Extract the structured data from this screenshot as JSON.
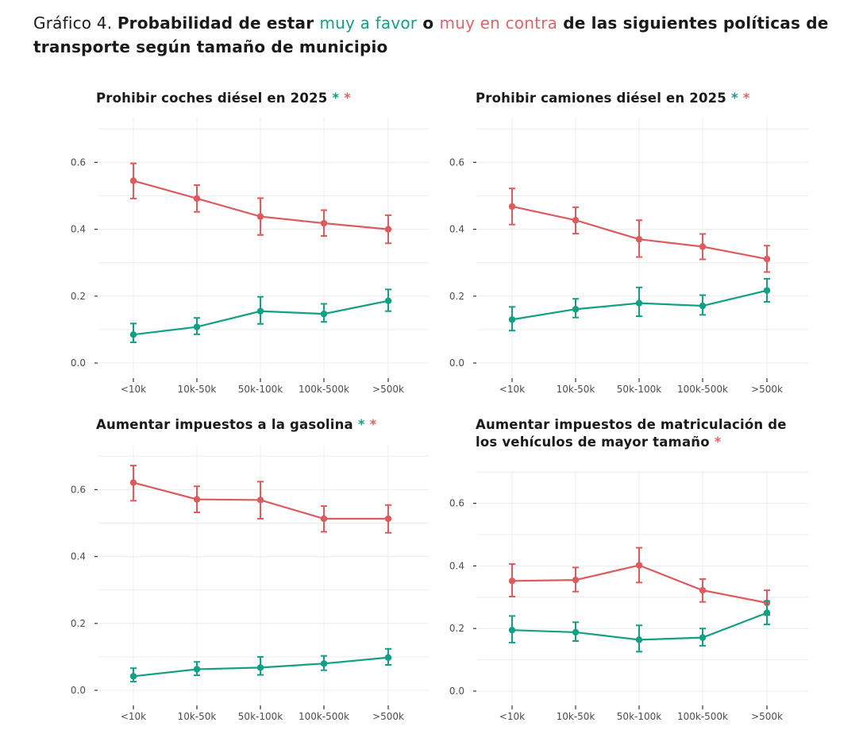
{
  "header": {
    "prefix": "Gráfico 4. ",
    "bold1": "Probabilidad de estar ",
    "favor": "muy a favor",
    "bold2": " o ",
    "contra": "muy en contra",
    "bold3": " de las siguientes políticas de transporte según tamaño de municipio"
  },
  "colors": {
    "favor": "#12a084",
    "contra": "#dc5b5e"
  },
  "chart_data": [
    {
      "type": "line",
      "title": "Prohibir coches diésel en 2025",
      "stars": [
        "green",
        "red"
      ],
      "categories": [
        "<10k",
        "10k-50k",
        "50k-100k",
        "100k-500k",
        ">500k"
      ],
      "ylim": [
        0,
        0.72
      ],
      "yticks": [
        "0.0",
        "0.2",
        "0.4",
        "0.6"
      ],
      "series": [
        {
          "name": "muy en contra",
          "color": "red",
          "values": [
            0.545,
            0.492,
            0.438,
            0.418,
            0.4
          ],
          "lower": [
            0.492,
            0.452,
            0.383,
            0.38,
            0.358
          ],
          "upper": [
            0.597,
            0.532,
            0.493,
            0.457,
            0.442
          ]
        },
        {
          "name": "muy a favor",
          "color": "green",
          "values": [
            0.085,
            0.108,
            0.155,
            0.147,
            0.186
          ],
          "lower": [
            0.062,
            0.086,
            0.117,
            0.123,
            0.155
          ],
          "upper": [
            0.118,
            0.135,
            0.198,
            0.177,
            0.22
          ]
        }
      ]
    },
    {
      "type": "line",
      "title": "Prohibir camiones diésel en 2025",
      "stars": [
        "green",
        "red"
      ],
      "categories": [
        "<10k",
        "10k-50k",
        "50k-100k",
        "100k-500k",
        ">500k"
      ],
      "ylim": [
        0,
        0.72
      ],
      "yticks": [
        "0.0",
        "0.2",
        "0.4",
        "0.6"
      ],
      "series": [
        {
          "name": "muy en contra",
          "color": "red",
          "values": [
            0.468,
            0.427,
            0.37,
            0.348,
            0.311
          ],
          "lower": [
            0.414,
            0.387,
            0.317,
            0.31,
            0.272
          ],
          "upper": [
            0.522,
            0.466,
            0.427,
            0.386,
            0.351
          ]
        },
        {
          "name": "muy a favor",
          "color": "green",
          "values": [
            0.13,
            0.161,
            0.179,
            0.171,
            0.217
          ],
          "lower": [
            0.097,
            0.136,
            0.14,
            0.144,
            0.183
          ],
          "upper": [
            0.168,
            0.192,
            0.226,
            0.203,
            0.252
          ]
        }
      ]
    },
    {
      "type": "line",
      "title": "Aumentar impuestos a la gasolina",
      "stars": [
        "green",
        "red"
      ],
      "categories": [
        "<10k",
        "10k-50k",
        "50k-100k",
        "100k-500k",
        ">500k"
      ],
      "ylim": [
        0,
        0.72
      ],
      "yticks": [
        "0.0",
        "0.2",
        "0.4",
        "0.6"
      ],
      "series": [
        {
          "name": "muy en contra",
          "color": "red",
          "values": [
            0.621,
            0.571,
            0.569,
            0.513,
            0.513
          ],
          "lower": [
            0.567,
            0.532,
            0.513,
            0.474,
            0.471
          ],
          "upper": [
            0.672,
            0.61,
            0.624,
            0.551,
            0.554
          ]
        },
        {
          "name": "muy a favor",
          "color": "green",
          "values": [
            0.042,
            0.063,
            0.068,
            0.08,
            0.098
          ],
          "lower": [
            0.026,
            0.045,
            0.046,
            0.06,
            0.076
          ],
          "upper": [
            0.066,
            0.085,
            0.1,
            0.103,
            0.124
          ]
        }
      ]
    },
    {
      "type": "line",
      "title": "Aumentar impuestos de matriculación de los vehículos de mayor tamaño",
      "title_lines": [
        "Aumentar impuestos de matriculación  de",
        "los vehículos de mayor tamaño"
      ],
      "stars": [
        "red"
      ],
      "categories": [
        "<10k",
        "10k-50k",
        "50k-100k",
        "100k-500k",
        ">500k"
      ],
      "ylim": [
        0,
        0.72
      ],
      "yticks": [
        "0.0",
        "0.2",
        "0.4",
        "0.6"
      ],
      "series": [
        {
          "name": "muy en contra",
          "color": "red",
          "values": [
            0.352,
            0.355,
            0.402,
            0.322,
            0.282
          ],
          "lower": [
            0.302,
            0.318,
            0.347,
            0.285,
            0.243
          ],
          "upper": [
            0.406,
            0.395,
            0.458,
            0.358,
            0.322
          ]
        },
        {
          "name": "muy a favor",
          "color": "green",
          "values": [
            0.195,
            0.188,
            0.164,
            0.171,
            0.25
          ],
          "lower": [
            0.155,
            0.16,
            0.126,
            0.145,
            0.213
          ],
          "upper": [
            0.24,
            0.22,
            0.21,
            0.2,
            0.288
          ]
        }
      ]
    }
  ]
}
